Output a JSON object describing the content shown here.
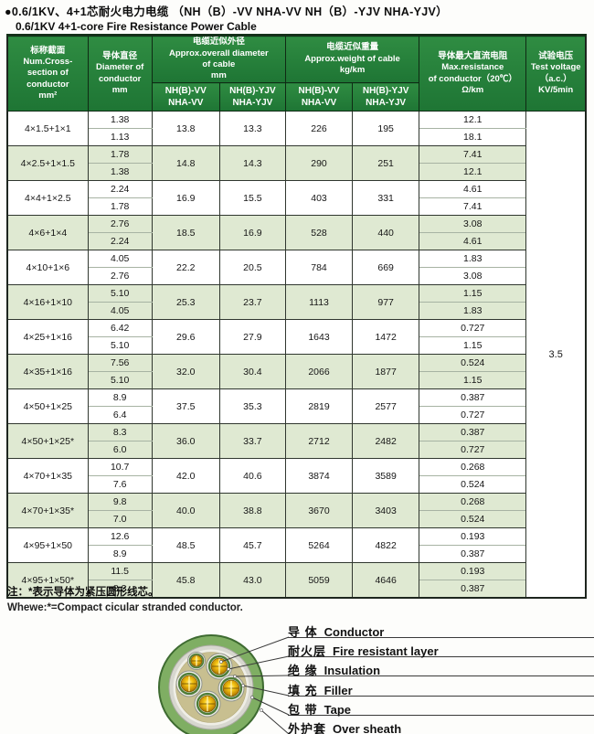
{
  "page": {
    "title_zh": "●0.6/1KV、4+1芯耐火电力电缆 （NH（B）-VV NHA-VV NH（B）-YJV NHA-YJV）",
    "title_en": "0.6/1KV 4+1-core Fire Resistance Power Cable"
  },
  "table": {
    "headers": {
      "cross_section": "标称截面\nNum.Cross-\nsection of\nconductor\nmm²",
      "diameter": "导体直径\nDiameter of\nconductor\nmm",
      "od_group": "电缆近似外径\nApprox.overall diameter\nof cable\nmm",
      "weight_group": "电缆近似重量\nApprox.weight of cable\nkg/km",
      "sub_vv": "NH(B)-VV\nNHA-VV",
      "sub_yjv": "NH(B)-YJV\nNHA-YJV",
      "resistance": "导体最大直流电阻\nMax.resistance\nof conductor（20℃）\nΩ/km",
      "test_voltage": "试验电压\nTest voltage\n（a.c.）\nKV/5min"
    },
    "rows": [
      {
        "spec": "4×1.5+1×1",
        "diameter": [
          "1.38",
          "1.13"
        ],
        "od_vv": "13.8",
        "od_yjv": "13.3",
        "weight_vv": "226",
        "weight_yjv": "195",
        "resistance": [
          "12.1",
          "18.1"
        ],
        "shaded": false
      },
      {
        "spec": "4×2.5+1×1.5",
        "diameter": [
          "1.78",
          "1.38"
        ],
        "od_vv": "14.8",
        "od_yjv": "14.3",
        "weight_vv": "290",
        "weight_yjv": "251",
        "resistance": [
          "7.41",
          "12.1"
        ],
        "shaded": true
      },
      {
        "spec": "4×4+1×2.5",
        "diameter": [
          "2.24",
          "1.78"
        ],
        "od_vv": "16.9",
        "od_yjv": "15.5",
        "weight_vv": "403",
        "weight_yjv": "331",
        "resistance": [
          "4.61",
          "7.41"
        ],
        "shaded": false
      },
      {
        "spec": "4×6+1×4",
        "diameter": [
          "2.76",
          "2.24"
        ],
        "od_vv": "18.5",
        "od_yjv": "16.9",
        "weight_vv": "528",
        "weight_yjv": "440",
        "resistance": [
          "3.08",
          "4.61"
        ],
        "shaded": true
      },
      {
        "spec": "4×10+1×6",
        "diameter": [
          "4.05",
          "2.76"
        ],
        "od_vv": "22.2",
        "od_yjv": "20.5",
        "weight_vv": "784",
        "weight_yjv": "669",
        "resistance": [
          "1.83",
          "3.08"
        ],
        "shaded": false
      },
      {
        "spec": "4×16+1×10",
        "diameter": [
          "5.10",
          "4.05"
        ],
        "od_vv": "25.3",
        "od_yjv": "23.7",
        "weight_vv": "1113",
        "weight_yjv": "977",
        "resistance": [
          "1.15",
          "1.83"
        ],
        "shaded": true
      },
      {
        "spec": "4×25+1×16",
        "diameter": [
          "6.42",
          "5.10"
        ],
        "od_vv": "29.6",
        "od_yjv": "27.9",
        "weight_vv": "1643",
        "weight_yjv": "1472",
        "resistance": [
          "0.727",
          "1.15"
        ],
        "shaded": false
      },
      {
        "spec": "4×35+1×16",
        "diameter": [
          "7.56",
          "5.10"
        ],
        "od_vv": "32.0",
        "od_yjv": "30.4",
        "weight_vv": "2066",
        "weight_yjv": "1877",
        "resistance": [
          "0.524",
          "1.15"
        ],
        "shaded": true
      },
      {
        "spec": "4×50+1×25",
        "diameter": [
          "8.9",
          "6.4"
        ],
        "od_vv": "37.5",
        "od_yjv": "35.3",
        "weight_vv": "2819",
        "weight_yjv": "2577",
        "resistance": [
          "0.387",
          "0.727"
        ],
        "shaded": false
      },
      {
        "spec": "4×50+1×25*",
        "diameter": [
          "8.3",
          "6.0"
        ],
        "od_vv": "36.0",
        "od_yjv": "33.7",
        "weight_vv": "2712",
        "weight_yjv": "2482",
        "resistance": [
          "0.387",
          "0.727"
        ],
        "shaded": true
      },
      {
        "spec": "4×70+1×35",
        "diameter": [
          "10.7",
          "7.6"
        ],
        "od_vv": "42.0",
        "od_yjv": "40.6",
        "weight_vv": "3874",
        "weight_yjv": "3589",
        "resistance": [
          "0.268",
          "0.524"
        ],
        "shaded": false
      },
      {
        "spec": "4×70+1×35*",
        "diameter": [
          "9.8",
          "7.0"
        ],
        "od_vv": "40.0",
        "od_yjv": "38.8",
        "weight_vv": "3670",
        "weight_yjv": "3403",
        "resistance": [
          "0.268",
          "0.524"
        ],
        "shaded": true
      },
      {
        "spec": "4×95+1×50",
        "diameter": [
          "12.6",
          "8.9"
        ],
        "od_vv": "48.5",
        "od_yjv": "45.7",
        "weight_vv": "5264",
        "weight_yjv": "4822",
        "resistance": [
          "0.193",
          "0.387"
        ],
        "shaded": false
      },
      {
        "spec": "4×95+1×50*",
        "diameter": [
          "11.5",
          "8.3"
        ],
        "od_vv": "45.8",
        "od_yjv": "43.0",
        "weight_vv": "5059",
        "weight_yjv": "4646",
        "resistance": [
          "0.193",
          "0.387"
        ],
        "shaded": true
      }
    ],
    "test_voltage_value": "3.5"
  },
  "notes": {
    "zh": "注：*表示导体为紧压圆形线芯。",
    "en": "Whewe:*=Compact cicular stranded conductor."
  },
  "diagram": {
    "labels": [
      {
        "zh": "导  体",
        "en": "Conductor"
      },
      {
        "zh": "耐火层",
        "en": "Fire resistant layer"
      },
      {
        "zh": "绝  缘",
        "en": "Insulation"
      },
      {
        "zh": "填  充",
        "en": "Filler"
      },
      {
        "zh": "包  带",
        "en": "Tape"
      },
      {
        "zh": "外护套",
        "en": "Over sheath"
      }
    ]
  },
  "colors": {
    "header_green": "#2a843d",
    "row_green": "#dfe9d2",
    "table_border": "#30372f",
    "sheath_green": "#7fae63",
    "filler_khaki": "#c8bf90",
    "conductor_gold": "#f2c81e"
  }
}
